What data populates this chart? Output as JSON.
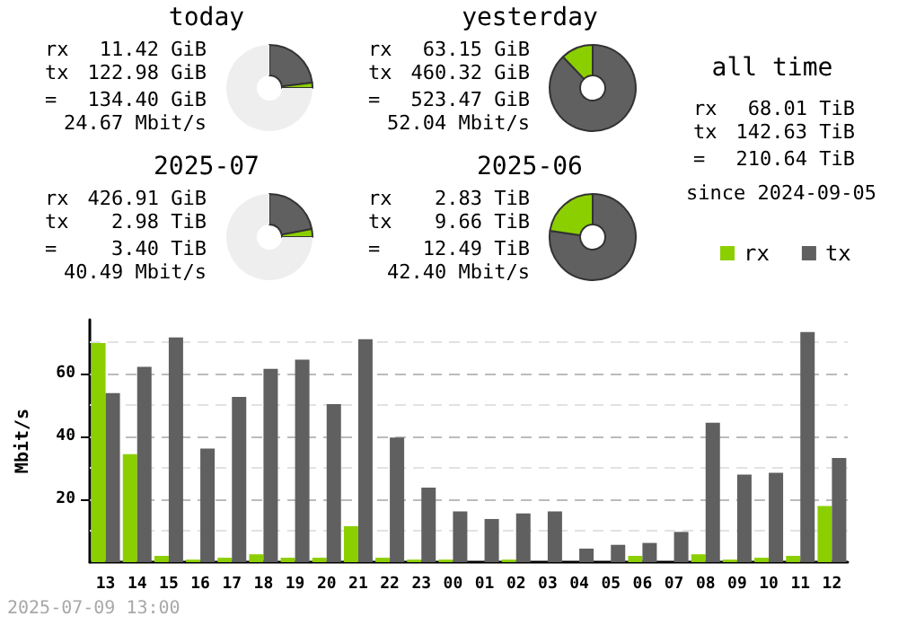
{
  "chart_data": [
    {
      "type": "donut",
      "title": "today",
      "categories": [
        null,
        null,
        null
      ],
      "values": [
        23,
        2,
        75
      ],
      "colors": [
        "#606060",
        "#8ccf00",
        "#eeeeee"
      ],
      "annotations": [
        "rx 11.42 GiB",
        "tx 122.98 GiB",
        "= 134.40 GiB",
        "24.67 Mbit/s"
      ]
    },
    {
      "type": "donut",
      "title": "yesterday",
      "categories": [
        null,
        null
      ],
      "values": [
        87.9,
        12.1
      ],
      "colors": [
        "#606060",
        "#8ccf00"
      ],
      "annotations": [
        "rx 63.15 GiB",
        "tx 460.32 GiB",
        "= 523.47 GiB",
        "52.04 Mbit/s"
      ]
    },
    {
      "type": "donut",
      "title": "2025-07",
      "categories": [
        null,
        null,
        null
      ],
      "values": [
        22,
        3,
        75
      ],
      "colors": [
        "#606060",
        "#8ccf00",
        "#eeeeee"
      ],
      "annotations": [
        "rx 426.91 GiB",
        "tx 2.98 TiB",
        "= 3.40 TiB",
        "40.49 Mbit/s"
      ]
    },
    {
      "type": "donut",
      "title": "2025-06",
      "categories": [
        null,
        null
      ],
      "values": [
        77.3,
        22.7
      ],
      "colors": [
        "#606060",
        "#8ccf00"
      ],
      "annotations": [
        "rx 2.83 TiB",
        "tx 9.66 TiB",
        "= 12.49 TiB",
        "42.40 Mbit/s"
      ]
    },
    {
      "type": "other",
      "title": "all time",
      "annotations": [
        "rx 68.01 TiB",
        "tx 142.63 TiB",
        "= 210.64 TiB",
        "since 2024-09-05"
      ]
    },
    {
      "type": "bar",
      "ylabel": "Mbit/s",
      "categories": [
        "13",
        "14",
        "15",
        "16",
        "17",
        "18",
        "19",
        "20",
        "21",
        "22",
        "23",
        "00",
        "01",
        "02",
        "03",
        "04",
        "05",
        "06",
        "07",
        "08",
        "09",
        "10",
        "11",
        "12"
      ],
      "series": [
        {
          "name": "rx",
          "color": "#8ccf00",
          "values": [
            69.6,
            34.3,
            2,
            0.8,
            1.4,
            2.5,
            1.4,
            1.4,
            11.4,
            1.4,
            0.8,
            0.8,
            0,
            0.8,
            0,
            0,
            0,
            2,
            0,
            2.5,
            0.8,
            1.4,
            2,
            17.8
          ]
        },
        {
          "name": "tx",
          "color": "#606060",
          "values": [
            53.7,
            62,
            71.4,
            36.1,
            52.5,
            61.4,
            64.3,
            50.2,
            70.8,
            39.6,
            23.7,
            16.1,
            13.7,
            15.5,
            16.1,
            4.3,
            5.5,
            6.1,
            9.6,
            44.3,
            27.8,
            28.4,
            73.1,
            33.1
          ]
        }
      ],
      "ylim": [
        0,
        77
      ],
      "yticks": [
        {
          "value": 0,
          "label": null
        },
        {
          "value": 10,
          "label": null
        },
        20,
        {
          "value": 30,
          "label": null
        },
        40,
        {
          "value": 50,
          "label": null
        },
        60,
        {
          "value": 70,
          "label": null
        }
      ],
      "grid": "y",
      "legend": "top right",
      "annotations": [
        "2025-07-09 13:00"
      ]
    }
  ]
}
